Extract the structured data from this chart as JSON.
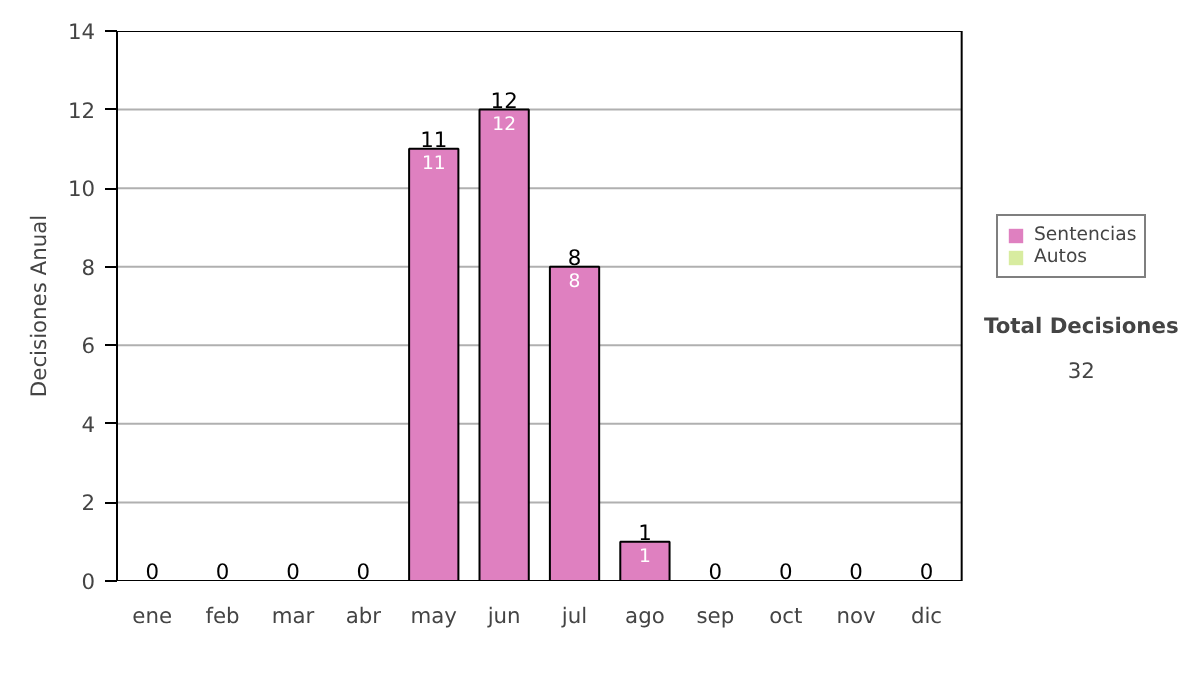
{
  "chart_data": {
    "type": "bar",
    "ylabel": "Decisiones Anual",
    "categories": [
      "ene",
      "feb",
      "mar",
      "abr",
      "may",
      "jun",
      "jul",
      "ago",
      "sep",
      "oct",
      "nov",
      "dic"
    ],
    "series": [
      {
        "name": "Sentencias",
        "color": "#df80c0",
        "values": [
          0,
          0,
          0,
          0,
          11,
          12,
          8,
          1,
          0,
          0,
          0,
          0
        ],
        "value_labels": [
          null,
          null,
          null,
          null,
          "11",
          "12",
          "8",
          "1",
          null,
          null,
          null,
          null
        ]
      },
      {
        "name": "Autos",
        "color": "#d8eca0",
        "values": [
          0,
          0,
          0,
          0,
          0,
          0,
          0,
          0,
          0,
          0,
          0,
          0
        ]
      }
    ],
    "totals": [
      "0",
      "0",
      "0",
      "0",
      "11",
      "12",
      "8",
      "1",
      "0",
      "0",
      "0",
      "0"
    ],
    "ylim": [
      0,
      14
    ],
    "yticks": [
      0,
      2,
      4,
      6,
      8,
      10,
      12,
      14
    ],
    "grid": "y",
    "legend": "right",
    "annotations": [
      "Total Decisiones",
      "32"
    ]
  }
}
